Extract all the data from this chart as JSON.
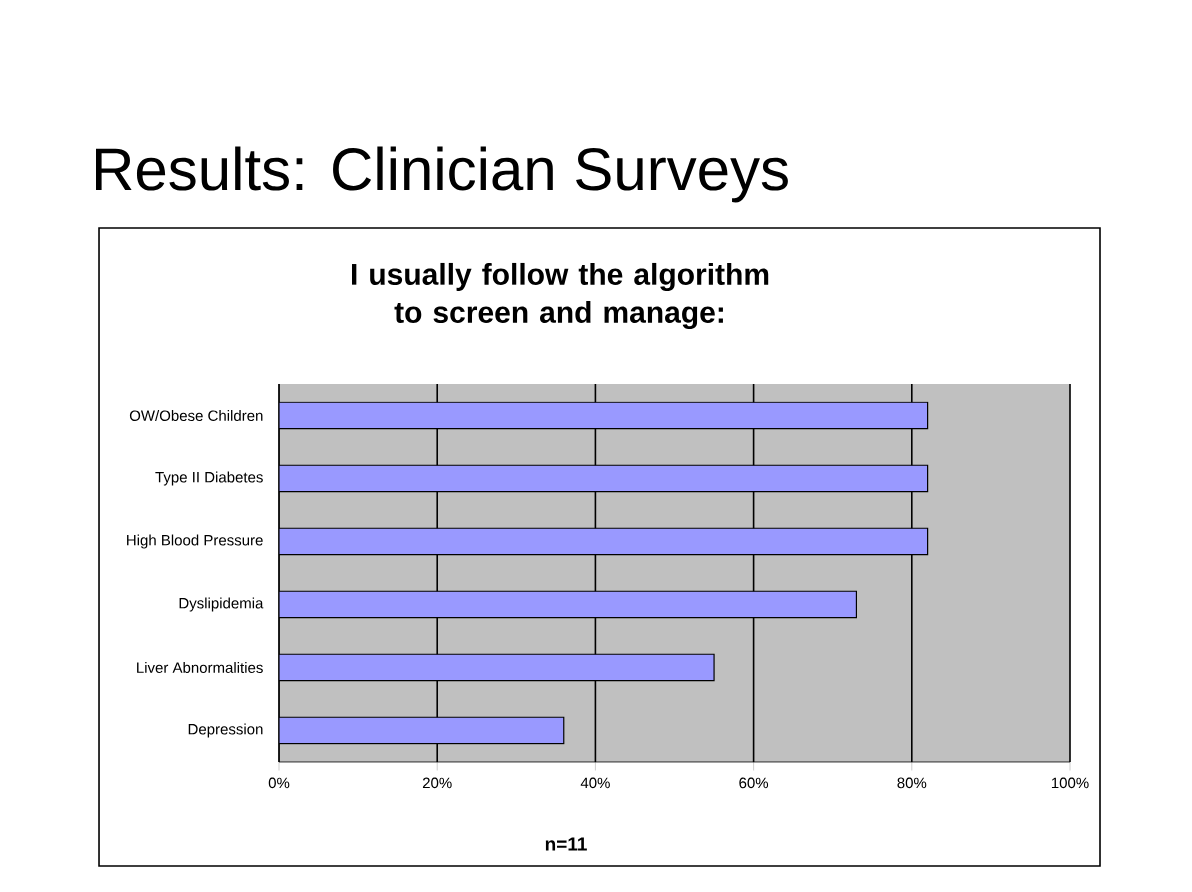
{
  "chart_data": {
    "type": "bar",
    "orientation": "horizontal",
    "title": "Results: Clinician Surveys",
    "subtitle": "I usually follow the algorithm to screen and manage:",
    "xlabel": "n=11",
    "categories": [
      "OW/Obese Children",
      "Type II Diabetes",
      "High Blood Pressure",
      "Dyslipidemia",
      "Liver Abnormalities",
      "Depression"
    ],
    "values": [
      82,
      82,
      82,
      73,
      55,
      36
    ],
    "color": "#9999ff",
    "xlim": [
      0,
      100
    ],
    "xticks": [
      {
        "value": 0,
        "label": "0%"
      },
      {
        "value": 20,
        "label": "20%"
      },
      {
        "value": 40,
        "label": "40%"
      },
      {
        "value": 60,
        "label": "60%"
      },
      {
        "value": 80,
        "label": "80%"
      },
      {
        "value": 100,
        "label": "100%"
      }
    ],
    "grid": "x"
  }
}
